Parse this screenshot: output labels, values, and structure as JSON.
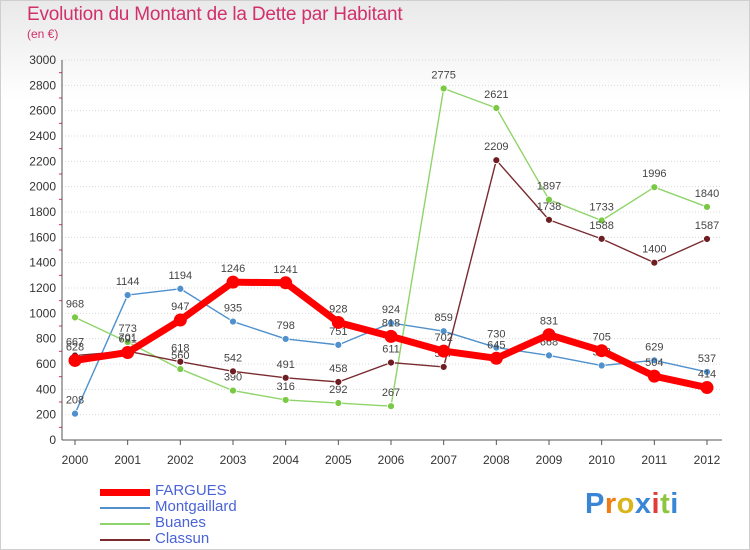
{
  "chart_data": {
    "type": "line",
    "title": "Evolution du Montant de la Dette par Habitant",
    "subtitle": "(en €)",
    "ylim": [
      0,
      3000
    ],
    "yticks": [
      0,
      200,
      400,
      600,
      800,
      1000,
      1200,
      1400,
      1600,
      1800,
      2000,
      2200,
      2400,
      2600,
      2800,
      3000
    ],
    "x": [
      "2000",
      "2001",
      "2002",
      "2003",
      "2004",
      "2005",
      "2006",
      "2007",
      "2008",
      "2009",
      "2010",
      "2011",
      "2012"
    ],
    "grid": "horizontal",
    "legend_position": "bottom-left",
    "series": [
      {
        "name": "Montgaillard",
        "color": "#4f90cd",
        "marker": "#4f90cd",
        "width": 1.4,
        "values": [
          208,
          1144,
          1194,
          935,
          798,
          751,
          924,
          859,
          730,
          668,
          588,
          629,
          537
        ],
        "labels": [
          "208",
          "1144",
          "1194",
          "935",
          "798",
          "751",
          "924",
          "859",
          "730",
          "668",
          "588",
          "629",
          "537"
        ]
      },
      {
        "name": "Buanes",
        "color": "#8fd46a",
        "marker": "#79c944",
        "width": 1.4,
        "values": [
          968,
          773,
          560,
          390,
          316,
          292,
          267,
          2775,
          2621,
          1897,
          1733,
          1996,
          1840
        ],
        "labels": [
          "968",
          "773",
          "560",
          "390",
          "316",
          "292",
          "267",
          "2775",
          "2621",
          "1897",
          "1733",
          "1996",
          "1840"
        ]
      },
      {
        "name": "Classun",
        "color": "#7a2b30",
        "marker": "#6e1e22",
        "width": 1.4,
        "values": [
          667,
          701,
          618,
          542,
          491,
          458,
          611,
          577,
          2209,
          1738,
          1588,
          1400,
          1587
        ],
        "labels": [
          "667",
          "701",
          "618",
          "542",
          "491",
          "458",
          "611",
          "577",
          "2209",
          "1738",
          "1588",
          "1400",
          "1587"
        ]
      },
      {
        "name": "FARGUES",
        "color": "#ff0000",
        "marker": "#ff0000",
        "width": 7,
        "values": [
          628,
          691,
          947,
          1246,
          1241,
          928,
          818,
          702,
          645,
          831,
          705,
          504,
          414
        ],
        "labels": [
          "628",
          "691",
          "947",
          "1246",
          "1241",
          "928",
          "818",
          "702",
          "645",
          "831",
          "705",
          "504",
          "414"
        ]
      }
    ]
  },
  "legend": {
    "items": [
      {
        "label": "FARGUES",
        "color": "#ff0000",
        "weight": 7
      },
      {
        "label": "Montgaillard",
        "color": "#4f90cd",
        "weight": 2
      },
      {
        "label": "Buanes",
        "color": "#8fd46a",
        "weight": 2
      },
      {
        "label": "Classun",
        "color": "#7a2b30",
        "weight": 2
      }
    ]
  },
  "logo": {
    "letters": [
      "P",
      "r",
      "o",
      "x",
      "i",
      "t",
      "i"
    ],
    "colors": [
      "#3a86d6",
      "#f07d12",
      "#d9b41b",
      "#3a86d6",
      "#e23b3b",
      "#8cc63f",
      "#3a86d6"
    ]
  }
}
